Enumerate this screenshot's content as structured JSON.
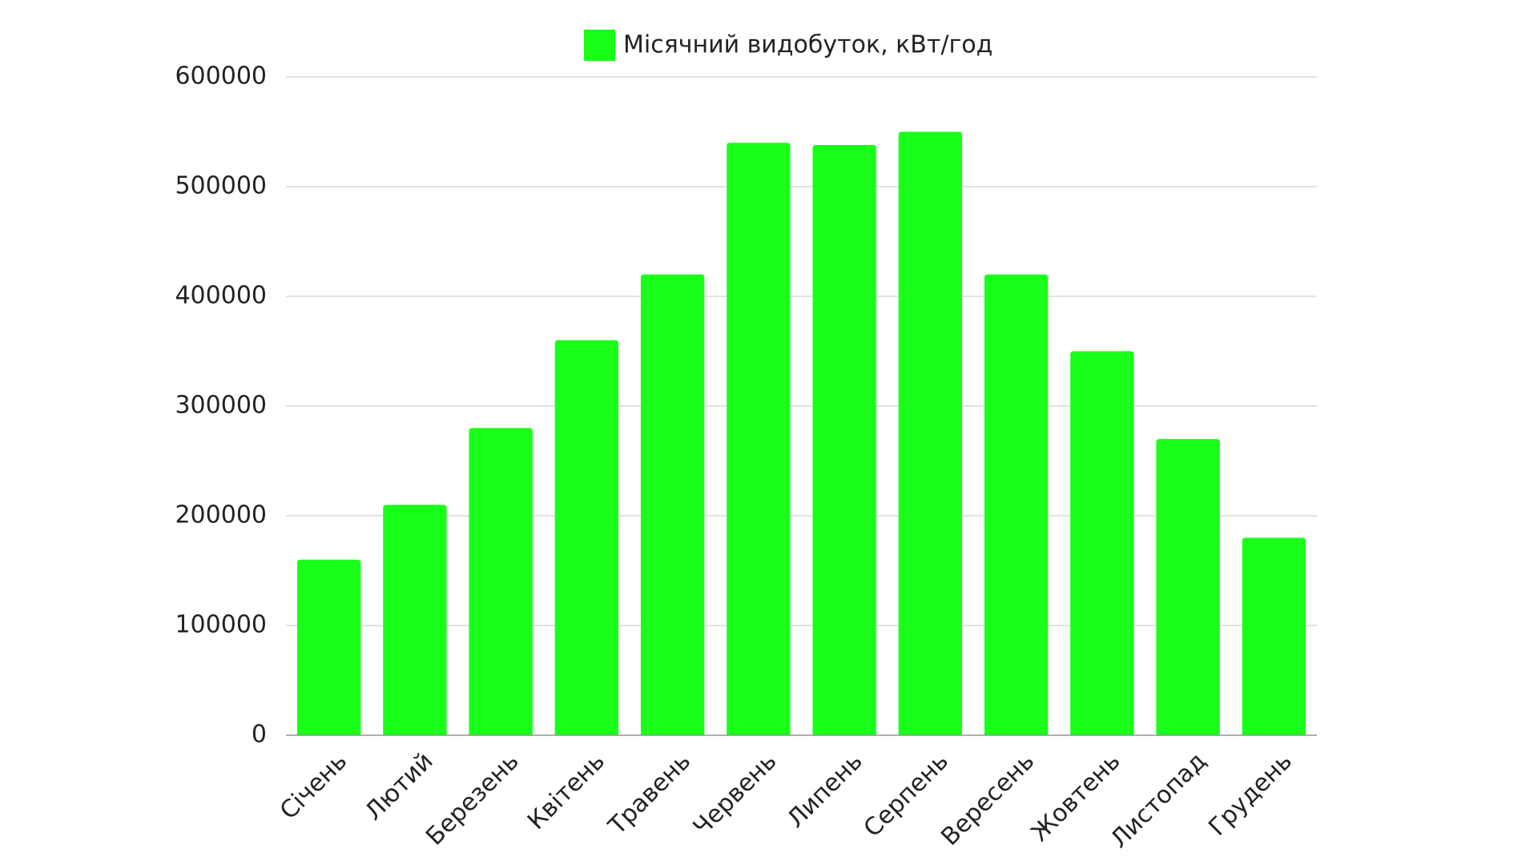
{
  "chart_data": {
    "type": "bar",
    "categories": [
      "Січень",
      "Лютий",
      "Березень",
      "Квітень",
      "Травень",
      "Червень",
      "Липень",
      "Серпень",
      "Вересень",
      "Жовтень",
      "Листопад",
      "Грудень"
    ],
    "series": [
      {
        "name": "Місячний видобуток, кВт/год",
        "color": "#1aff1a",
        "values": [
          160000,
          210000,
          280000,
          360000,
          420000,
          540000,
          538000,
          550000,
          420000,
          350000,
          270000,
          180000
        ]
      }
    ],
    "ylim": [
      0,
      600000
    ],
    "yticks": [
      0,
      100000,
      200000,
      300000,
      400000,
      500000,
      600000
    ],
    "grid": true,
    "legend": "top"
  }
}
